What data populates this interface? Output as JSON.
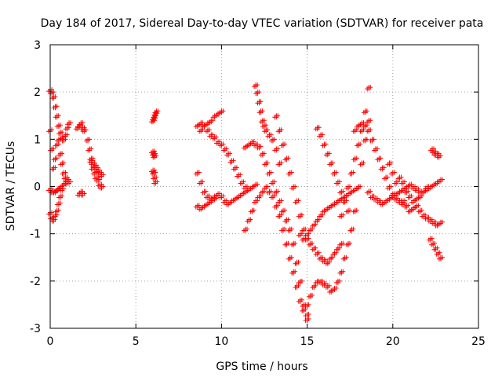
{
  "chart_data": {
    "type": "scatter",
    "title": "Day 184 of 2017, Sidereal Day-to-day VTEC variation (SDTVAR) for receiver pata",
    "xlabel": "GPS time / hours",
    "ylabel": "SDTVAR / TECUs",
    "xlim": [
      0,
      25
    ],
    "ylim": [
      -3,
      3
    ],
    "xticks": [
      0,
      5,
      10,
      15,
      20,
      25
    ],
    "yticks": [
      -3,
      -2,
      -1,
      0,
      1,
      2,
      3
    ],
    "grid": true,
    "marker": "plus",
    "marker_color": "#ff0000",
    "series": [
      {
        "name": "seg-early-a",
        "x": [
          0.0,
          0.1,
          0.2,
          0.3,
          0.4,
          0.5,
          0.6,
          0.7,
          0.8,
          0.9,
          1.0,
          1.1
        ],
        "y": [
          2.05,
          2.0,
          1.9,
          1.7,
          1.5,
          1.3,
          1.15,
          1.05,
          1.0,
          1.1,
          1.25,
          1.35
        ]
      },
      {
        "name": "seg-early-b",
        "x": [
          0.0,
          0.1,
          0.2,
          0.3,
          0.4,
          0.5,
          0.6,
          0.7,
          0.8,
          0.9,
          1.0,
          1.1
        ],
        "y": [
          1.2,
          0.8,
          0.4,
          0.6,
          0.9,
          1.0,
          0.7,
          0.5,
          0.3,
          0.2,
          0.1,
          0.1
        ]
      },
      {
        "name": "seg-early-c",
        "x": [
          0.0,
          0.1,
          0.2,
          0.3,
          0.4,
          0.5,
          0.6,
          0.7,
          0.8,
          0.9,
          1.0
        ],
        "y": [
          -0.55,
          -0.65,
          -0.7,
          -0.6,
          -0.5,
          -0.35,
          -0.2,
          -0.05,
          0.05,
          0.1,
          0.15
        ]
      },
      {
        "name": "seg-early-d",
        "x": [
          0.0,
          0.15,
          0.3,
          0.45,
          0.6
        ],
        "y": [
          -0.05,
          -0.1,
          -0.1,
          -0.05,
          0.0
        ]
      },
      {
        "name": "seg-early-e",
        "x": [
          1.6,
          1.7,
          1.8,
          1.9,
          2.0,
          1.7,
          1.8,
          1.9
        ],
        "y": [
          1.25,
          1.3,
          1.35,
          1.25,
          1.2,
          -0.15,
          -0.1,
          -0.15
        ]
      },
      {
        "name": "seg-early-f",
        "x": [
          2.2,
          2.3,
          2.4,
          2.5,
          2.6,
          2.7,
          2.8,
          2.9,
          3.0
        ],
        "y": [
          1.0,
          0.8,
          0.6,
          0.4,
          0.3,
          0.2,
          0.15,
          0.05,
          0.0
        ]
      },
      {
        "name": "seg-early-g",
        "x": [
          2.4,
          2.5,
          2.6,
          2.7,
          2.8,
          2.9,
          3.0
        ],
        "y": [
          0.55,
          0.5,
          0.45,
          0.4,
          0.35,
          0.3,
          0.25
        ]
      },
      {
        "name": "seg-6h",
        "x": [
          6.0,
          6.05,
          6.1,
          6.15,
          6.2,
          6.0,
          6.05,
          6.1,
          6.0,
          6.05,
          6.1,
          6.15
        ],
        "y": [
          1.4,
          1.45,
          1.5,
          1.55,
          1.6,
          0.75,
          0.7,
          0.65,
          0.35,
          0.3,
          0.2,
          0.1
        ]
      },
      {
        "name": "seg-9h-a",
        "x": [
          8.6,
          8.8,
          9.0,
          9.2,
          9.4,
          9.6,
          9.8,
          10.0,
          10.2,
          10.4,
          10.6,
          10.8,
          11.0,
          11.2,
          11.4
        ],
        "y": [
          1.3,
          1.35,
          1.3,
          1.2,
          1.1,
          1.05,
          0.95,
          0.9,
          0.8,
          0.7,
          0.55,
          0.4,
          0.25,
          0.1,
          0.0
        ]
      },
      {
        "name": "seg-9h-b",
        "x": [
          8.6,
          8.8,
          9.0,
          9.2,
          9.4,
          9.6,
          9.8,
          10.0,
          10.2,
          10.4,
          10.6,
          10.8,
          11.0,
          11.2,
          11.4,
          11.6,
          11.8,
          12.0
        ],
        "y": [
          0.3,
          0.1,
          -0.1,
          -0.2,
          -0.25,
          -0.2,
          -0.15,
          -0.2,
          -0.3,
          -0.35,
          -0.3,
          -0.25,
          -0.2,
          -0.15,
          -0.1,
          -0.05,
          0.0,
          0.05
        ]
      },
      {
        "name": "seg-9h-c",
        "x": [
          8.8,
          9.0,
          9.2,
          9.4,
          9.6,
          9.8,
          10.0
        ],
        "y": [
          1.2,
          1.3,
          1.35,
          1.4,
          1.5,
          1.55,
          1.6
        ]
      },
      {
        "name": "seg-9h-d",
        "x": [
          8.6,
          8.8,
          9.0,
          9.2,
          9.4,
          9.6
        ],
        "y": [
          -0.4,
          -0.45,
          -0.4,
          -0.35,
          -0.3,
          -0.25
        ]
      },
      {
        "name": "seg-12h-a",
        "x": [
          11.4,
          11.6,
          11.8,
          12.0,
          12.2,
          12.4,
          12.6,
          12.8,
          13.0,
          13.2,
          13.4,
          13.6,
          13.8,
          14.0,
          14.2,
          14.4,
          14.6,
          14.8,
          15.0
        ],
        "y": [
          0.85,
          0.9,
          0.95,
          0.9,
          0.85,
          0.7,
          0.5,
          0.3,
          0.1,
          -0.1,
          -0.3,
          -0.5,
          -0.7,
          -0.9,
          -1.2,
          -1.6,
          -2.0,
          -2.5,
          -2.8
        ]
      },
      {
        "name": "seg-12h-b",
        "x": [
          12.0,
          12.1,
          12.2,
          12.3,
          12.4,
          12.5,
          12.6,
          12.8,
          13.0,
          13.2,
          13.4
        ],
        "y": [
          2.15,
          2.0,
          1.8,
          1.6,
          1.4,
          1.3,
          1.2,
          1.1,
          1.0,
          0.8,
          0.5
        ]
      },
      {
        "name": "seg-12h-c",
        "x": [
          11.4,
          11.6,
          11.8,
          12.0,
          12.2,
          12.4,
          12.6,
          12.8,
          13.0,
          13.2,
          13.4,
          13.6,
          13.8,
          14.0,
          14.2,
          14.4,
          14.6,
          14.8,
          15.0
        ],
        "y": [
          -0.9,
          -0.7,
          -0.5,
          -0.3,
          -0.2,
          -0.1,
          0.0,
          -0.1,
          -0.2,
          -0.4,
          -0.6,
          -0.9,
          -1.2,
          -1.5,
          -1.8,
          -2.1,
          -2.4,
          -2.6,
          -2.7
        ]
      },
      {
        "name": "seg-13h-d",
        "x": [
          13.2,
          13.4,
          13.6,
          13.8,
          14.0,
          14.2,
          14.4,
          14.6,
          14.8,
          15.0,
          15.2,
          15.4,
          15.6,
          15.8,
          16.0,
          16.2,
          16.4,
          16.6,
          16.8,
          17.0
        ],
        "y": [
          1.5,
          1.2,
          0.9,
          0.6,
          0.3,
          0.0,
          -0.3,
          -0.6,
          -0.9,
          -1.1,
          -1.2,
          -1.3,
          -1.4,
          -1.5,
          -1.55,
          -1.6,
          -1.5,
          -1.4,
          -1.3,
          -1.2
        ]
      },
      {
        "name": "seg-15h-a",
        "x": [
          14.6,
          14.8,
          15.0,
          15.2,
          15.4,
          15.6,
          15.8,
          16.0,
          16.2,
          16.4,
          16.6,
          16.8,
          17.0,
          17.2,
          17.4,
          17.6,
          17.8,
          18.0
        ],
        "y": [
          -1.0,
          -1.1,
          -1.0,
          -0.9,
          -0.8,
          -0.7,
          -0.6,
          -0.5,
          -0.45,
          -0.4,
          -0.35,
          -0.3,
          -0.25,
          -0.2,
          -0.15,
          -0.1,
          -0.05,
          0.0
        ]
      },
      {
        "name": "seg-15h-b",
        "x": [
          15.0,
          15.2,
          15.4,
          15.6,
          15.8,
          16.0,
          16.2,
          16.4,
          16.6,
          16.8,
          17.0,
          17.2,
          17.4,
          17.6,
          17.8,
          18.0,
          18.2,
          18.4,
          18.6
        ],
        "y": [
          -2.5,
          -2.3,
          -2.1,
          -2.0,
          -2.0,
          -2.05,
          -2.1,
          -2.2,
          -2.15,
          -2.0,
          -1.8,
          -1.5,
          -1.2,
          -0.9,
          -0.5,
          0.0,
          0.5,
          1.0,
          1.4
        ]
      },
      {
        "name": "seg-16h-c",
        "x": [
          15.6,
          15.8,
          16.0,
          16.2,
          16.4,
          16.6,
          16.8,
          17.0,
          17.2,
          17.4
        ],
        "y": [
          1.25,
          1.1,
          0.9,
          0.7,
          0.5,
          0.3,
          0.1,
          -0.1,
          -0.3,
          -0.5
        ]
      },
      {
        "name": "seg-17h-a",
        "x": [
          17.0,
          17.2,
          17.4,
          17.6,
          17.8,
          18.0,
          18.2,
          18.4,
          18.6
        ],
        "y": [
          -0.6,
          -0.3,
          0.0,
          0.3,
          0.6,
          0.9,
          1.2,
          1.6,
          2.1
        ]
      },
      {
        "name": "seg-18h-a",
        "x": [
          17.8,
          18.0,
          18.2,
          18.4,
          18.6,
          18.8,
          19.0,
          19.2,
          19.4,
          19.6,
          19.8,
          20.0,
          20.2,
          20.4,
          20.6
        ],
        "y": [
          1.2,
          1.3,
          1.35,
          1.3,
          1.2,
          1.0,
          0.8,
          0.6,
          0.4,
          0.2,
          0.0,
          -0.15,
          -0.25,
          -0.3,
          -0.35
        ]
      },
      {
        "name": "seg-19h-a",
        "x": [
          18.6,
          18.8,
          19.0,
          19.2,
          19.4,
          19.6,
          19.8,
          20.0,
          20.2,
          20.4,
          20.6,
          20.8,
          21.0,
          21.2,
          21.4,
          21.6,
          21.8,
          22.0,
          22.2,
          22.4,
          22.6,
          22.8
        ],
        "y": [
          -0.1,
          -0.2,
          -0.25,
          -0.3,
          -0.35,
          -0.3,
          -0.25,
          -0.2,
          -0.15,
          -0.1,
          -0.05,
          0.0,
          0.05,
          0.0,
          -0.05,
          -0.1,
          -0.1,
          -0.05,
          0.0,
          0.05,
          0.1,
          0.15
        ]
      },
      {
        "name": "seg-20h-b",
        "x": [
          19.8,
          20.0,
          20.2,
          20.4,
          20.6,
          20.8,
          21.0,
          21.2,
          21.4,
          21.6,
          21.8,
          22.0,
          22.2,
          22.4,
          22.6,
          22.8
        ],
        "y": [
          0.5,
          0.3,
          0.1,
          -0.1,
          -0.3,
          -0.4,
          -0.5,
          -0.45,
          -0.4,
          -0.5,
          -0.6,
          -0.65,
          -0.7,
          -0.75,
          -0.8,
          -0.75
        ]
      },
      {
        "name": "seg-22h-c",
        "x": [
          22.2,
          22.35,
          22.5,
          22.65,
          22.8,
          22.3,
          22.4,
          22.5,
          22.6,
          22.7
        ],
        "y": [
          -1.1,
          -1.2,
          -1.3,
          -1.4,
          -1.5,
          0.8,
          0.75,
          0.7,
          0.7,
          0.65
        ]
      },
      {
        "name": "seg-20h-d",
        "x": [
          20.4,
          20.6,
          20.8,
          21.0,
          21.2,
          21.4,
          21.6,
          21.8,
          22.0
        ],
        "y": [
          0.2,
          0.1,
          -0.1,
          -0.2,
          -0.3,
          -0.25,
          -0.2,
          -0.1,
          0.0
        ]
      }
    ]
  }
}
